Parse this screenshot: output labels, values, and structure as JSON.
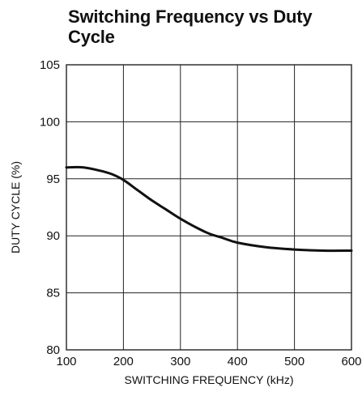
{
  "chart_data": {
    "type": "line",
    "title": "Switching Frequency vs Duty Cycle",
    "xlabel": "SWITCHING FREQUENCY (kHz)",
    "ylabel": "DUTY CYCLE (%)",
    "xlim": [
      100,
      600
    ],
    "ylim": [
      80,
      105
    ],
    "xticks": [
      100,
      200,
      300,
      400,
      500,
      600
    ],
    "yticks": [
      80,
      85,
      90,
      95,
      100,
      105
    ],
    "grid": true,
    "legend": "none",
    "line_color": "#111111",
    "grid_color": "#222222",
    "series": [
      {
        "x": [
          100,
          130,
          160,
          180,
          200,
          225,
          250,
          275,
          300,
          325,
          350,
          375,
          400,
          450,
          500,
          550,
          600
        ],
        "y": [
          96.0,
          96.0,
          95.7,
          95.4,
          94.9,
          94.0,
          93.1,
          92.3,
          91.5,
          90.8,
          90.2,
          89.8,
          89.4,
          89.0,
          88.8,
          88.7,
          88.7
        ]
      }
    ]
  }
}
